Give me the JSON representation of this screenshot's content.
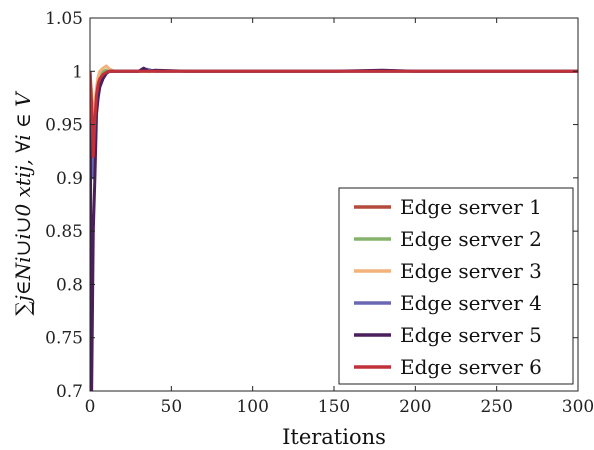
{
  "chart_data": {
    "type": "line",
    "xlabel": "Iterations",
    "ylabel": "∑j∈Ni∪i∪0 xtij, ∀i ∈ V",
    "xlim": [
      0,
      300
    ],
    "ylim": [
      0.7,
      1.05
    ],
    "xticks": [
      "0",
      "50",
      "100",
      "150",
      "200",
      "250",
      "300"
    ],
    "yticks": [
      "0.7",
      "0.75",
      "0.8",
      "0.85",
      "0.9",
      "0.95",
      "1",
      "1.05"
    ],
    "grid": false,
    "legend_position": "bottom-right",
    "series": [
      {
        "name": "Edge server 1",
        "color": "#b34a3c",
        "x": [
          0,
          1,
          2,
          3,
          4,
          5,
          6,
          8,
          10,
          12,
          15,
          20,
          30,
          40,
          60,
          100,
          150,
          200,
          250,
          300
        ],
        "y": [
          1.0,
          0.96,
          0.91,
          0.95,
          0.975,
          0.985,
          0.99,
          0.995,
          0.998,
          1.0,
          1.0,
          1.0,
          1.0,
          1.0,
          1.0,
          1.0,
          1.0,
          1.0,
          1.0,
          1.0
        ]
      },
      {
        "name": "Edge server 2",
        "color": "#86b36b",
        "x": [
          0,
          1,
          2,
          3,
          4,
          5,
          6,
          8,
          10,
          12,
          15,
          20,
          30,
          40,
          60,
          100,
          150,
          200,
          250,
          300
        ],
        "y": [
          1.0,
          0.97,
          0.93,
          0.96,
          0.98,
          0.99,
          0.995,
          1.0,
          1.001,
          1.0,
          1.0,
          1.0,
          1.0,
          1.0,
          1.0,
          1.0,
          1.0,
          1.0,
          1.0,
          1.0
        ]
      },
      {
        "name": "Edge server 3",
        "color": "#f2b27a",
        "x": [
          0,
          1,
          2,
          3,
          4,
          5,
          6,
          8,
          10,
          12,
          15,
          20,
          30,
          40,
          60,
          100,
          150,
          200,
          250,
          300
        ],
        "y": [
          1.0,
          0.98,
          0.94,
          0.97,
          0.985,
          0.995,
          1.0,
          1.003,
          1.005,
          1.002,
          1.0,
          1.0,
          1.0,
          1.0,
          1.0,
          1.0,
          1.0,
          1.0,
          1.0,
          1.0
        ]
      },
      {
        "name": "Edge server 4",
        "color": "#6a68b3",
        "x": [
          0,
          1,
          2,
          3,
          4,
          5,
          6,
          8,
          10,
          12,
          15,
          20,
          30,
          35,
          40,
          60,
          100,
          150,
          200,
          250,
          300
        ],
        "y": [
          1.0,
          0.95,
          0.9,
          0.94,
          0.97,
          0.98,
          0.99,
          0.995,
          0.999,
          1.0,
          1.0,
          1.0,
          1.0,
          1.002,
          1.0,
          1.0,
          1.0,
          1.0,
          1.0,
          1.0,
          1.0
        ]
      },
      {
        "name": "Edge server 5",
        "color": "#4a1f5c",
        "x": [
          0,
          1,
          2,
          3,
          4,
          5,
          6,
          8,
          10,
          12,
          15,
          20,
          30,
          33,
          36,
          40,
          60,
          100,
          150,
          180,
          200,
          250,
          300
        ],
        "y": [
          1.0,
          0.7,
          0.85,
          0.9,
          0.96,
          0.975,
          0.985,
          0.993,
          0.998,
          1.0,
          1.0,
          1.0,
          1.0,
          1.003,
          1.0,
          1.001,
          1.0,
          1.0,
          1.0,
          1.001,
          1.0,
          1.0,
          1.0
        ]
      },
      {
        "name": "Edge server 6",
        "color": "#c0313a",
        "x": [
          0,
          1,
          2,
          3,
          4,
          5,
          6,
          8,
          10,
          12,
          15,
          20,
          30,
          40,
          60,
          100,
          150,
          200,
          250,
          300
        ],
        "y": [
          1.0,
          0.97,
          0.92,
          0.955,
          0.978,
          0.988,
          0.993,
          0.997,
          0.999,
          1.0,
          1.0,
          1.0,
          1.0,
          1.0,
          1.0,
          1.0,
          1.0,
          1.0,
          1.0,
          1.0
        ]
      }
    ]
  }
}
